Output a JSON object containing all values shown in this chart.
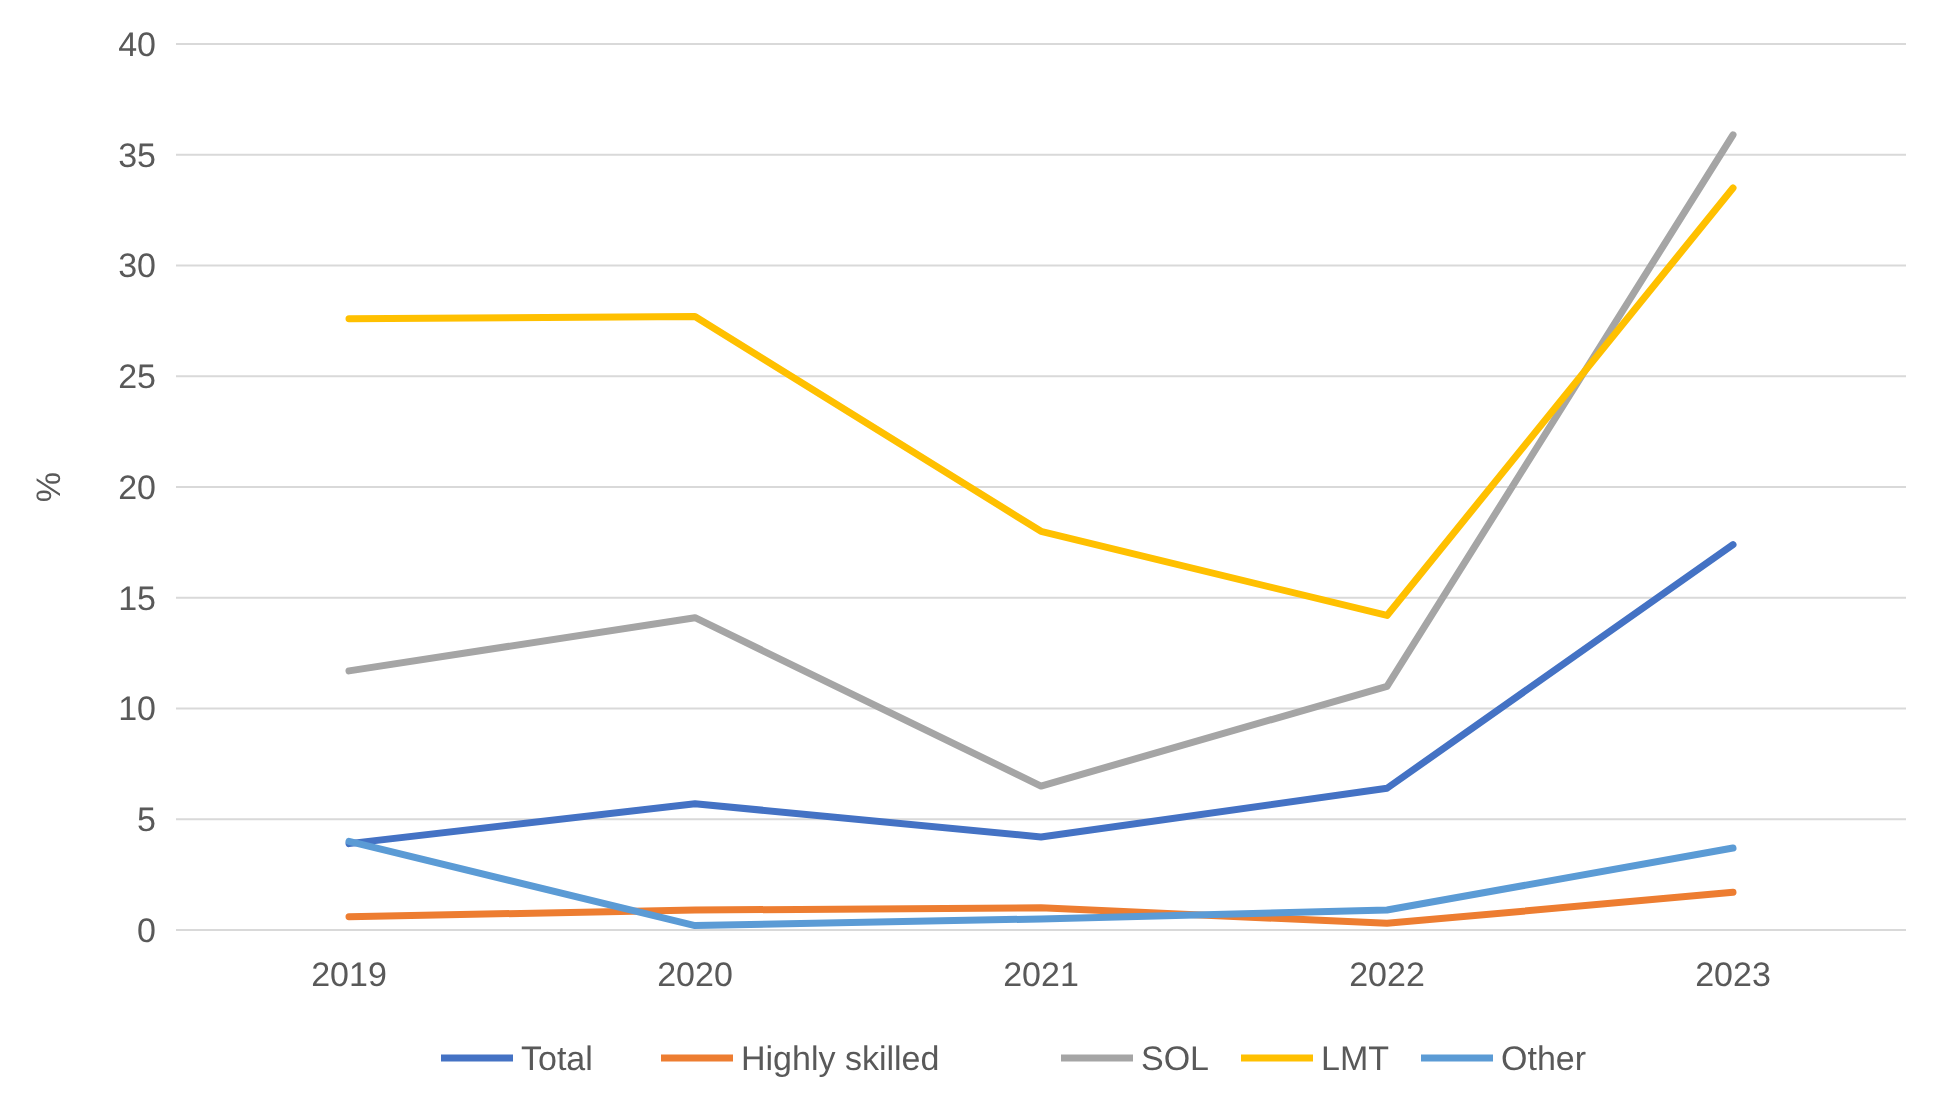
{
  "chart_data": {
    "type": "line",
    "ylabel": "%",
    "categories": [
      "2019",
      "2020",
      "2021",
      "2022",
      "2023"
    ],
    "series": [
      {
        "name": "Total",
        "color": "#4472c4",
        "values": [
          3.9,
          5.7,
          4.2,
          6.4,
          17.4
        ]
      },
      {
        "name": "Highly skilled",
        "color": "#ed7d31",
        "values": [
          0.6,
          0.9,
          1.0,
          0.3,
          1.7
        ]
      },
      {
        "name": "SOL",
        "color": "#a5a5a5",
        "values": [
          11.7,
          14.1,
          6.5,
          11.0,
          35.9
        ]
      },
      {
        "name": "LMT",
        "color": "#ffc000",
        "values": [
          27.6,
          27.7,
          18.0,
          14.2,
          33.5
        ]
      },
      {
        "name": "Other",
        "color": "#5b9bd5",
        "values": [
          4.0,
          0.2,
          0.5,
          0.9,
          3.7
        ]
      }
    ],
    "ylim": [
      0,
      40
    ],
    "yticks": [
      0,
      5,
      10,
      15,
      20,
      25,
      30,
      35,
      40
    ],
    "grid": "y",
    "legend": "bottom",
    "marker": "none",
    "line_style": "solid"
  }
}
